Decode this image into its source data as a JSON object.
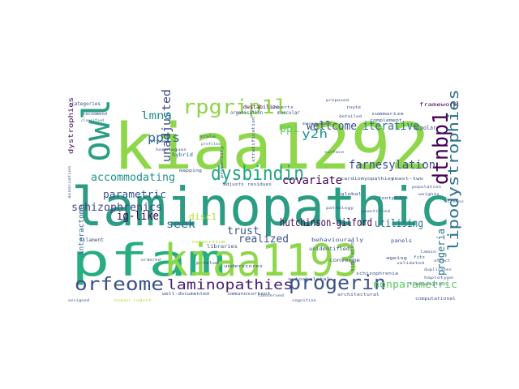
{
  "cloud": {
    "words": [
      {
        "text": "kiaa1292",
        "color": "#8ed64a"
      },
      {
        "text": "laminopathic",
        "color": "#2a9d84"
      },
      {
        "text": "pfam",
        "color": "#27ad81"
      },
      {
        "text": "kiaa1193",
        "color": "#8ed64a"
      },
      {
        "text": "owl",
        "color": "#2a9d84"
      },
      {
        "text": "dysbindin",
        "color": "#21a685"
      },
      {
        "text": "rpgrip1l",
        "color": "#8ed64a"
      },
      {
        "text": "dtnbp1",
        "color": "#440154"
      },
      {
        "text": "lipodystrophies",
        "color": "#2c728e"
      },
      {
        "text": "orfeome",
        "color": "#3b528b"
      },
      {
        "text": "laminopathies",
        "color": "#482173"
      },
      {
        "text": "progerin",
        "color": "#3b528b"
      },
      {
        "text": "ppis",
        "color": "#31688e"
      },
      {
        "text": "unadjusted",
        "color": "#3e4a89"
      },
      {
        "text": "ppi",
        "color": "#5ec962"
      },
      {
        "text": "y2h",
        "color": "#21918c"
      },
      {
        "text": "wellcome",
        "color": "#3b528b"
      },
      {
        "text": "iterative",
        "color": "#2c728e"
      },
      {
        "text": "lmna",
        "color": "#21918c"
      },
      {
        "text": "farnesylation",
        "color": "#3b528b"
      },
      {
        "text": "covariate",
        "color": "#440154"
      },
      {
        "text": "accommodating",
        "color": "#21918c"
      },
      {
        "text": "parametric",
        "color": "#3b528b"
      },
      {
        "text": "ig-like",
        "color": "#440154"
      },
      {
        "text": "schizophrenics",
        "color": "#414487"
      },
      {
        "text": "seek",
        "color": "#31688e"
      },
      {
        "text": "trust",
        "color": "#3b528b"
      },
      {
        "text": "hutchinson-gilford",
        "color": "#440154"
      },
      {
        "text": "utilising",
        "color": "#2c728e"
      },
      {
        "text": "disc1",
        "color": "#b5de2b"
      },
      {
        "text": "realized",
        "color": "#3b528b"
      },
      {
        "text": "progeria",
        "color": "#2c728e"
      },
      {
        "text": "nonparametric",
        "color": "#5ec962"
      },
      {
        "text": "interactome",
        "color": "#31688e"
      },
      {
        "text": "dystrophies",
        "color": "#440154"
      },
      {
        "text": "framework",
        "color": "#440154"
      },
      {
        "text": "categories",
        "color": "#3b528b"
      },
      {
        "text": "bipolar",
        "color": "#3b528b"
      },
      {
        "text": "organisation",
        "color": "#3b528b"
      },
      {
        "text": "destabilize",
        "color": "#440154"
      },
      {
        "text": "muscular",
        "color": "#3b528b"
      },
      {
        "text": "frames",
        "color": "#31688e"
      },
      {
        "text": "hybrid",
        "color": "#31688e"
      },
      {
        "text": "mapping",
        "color": "#3b528b"
      },
      {
        "text": "recommend",
        "color": "#3b528b"
      },
      {
        "text": "classified",
        "color": "#31688e"
      },
      {
        "text": "scale",
        "color": "#31688e"
      },
      {
        "text": "profiles",
        "color": "#31688e"
      },
      {
        "text": "cardiomyopathies",
        "color": "#3b528b"
      },
      {
        "text": "yeast-two",
        "color": "#3b528b"
      },
      {
        "text": "adjusts",
        "color": "#3b528b"
      },
      {
        "text": "residues",
        "color": "#3b528b"
      },
      {
        "text": "filament",
        "color": "#3b528b"
      },
      {
        "text": "libraries",
        "color": "#3b528b"
      },
      {
        "text": "behaviourally",
        "color": "#3b528b"
      },
      {
        "text": "unidentified",
        "color": "#3b528b"
      },
      {
        "text": "panels",
        "color": "#3b528b"
      },
      {
        "text": "converge",
        "color": "#3b528b"
      },
      {
        "text": "underscores",
        "color": "#3b528b"
      },
      {
        "text": "consortium",
        "color": "#b5de2b"
      },
      {
        "text": "inserts",
        "color": "#3b528b"
      },
      {
        "text": "route",
        "color": "#3b528b"
      },
      {
        "text": "summarize",
        "color": "#3b528b"
      },
      {
        "text": "complement",
        "color": "#3b528b"
      },
      {
        "text": "stratification",
        "color": "#3b528b"
      },
      {
        "text": "simulation",
        "color": "#3b528b"
      },
      {
        "text": "ageing",
        "color": "#3b528b"
      },
      {
        "text": "fits",
        "color": "#3b528b"
      },
      {
        "text": "well-documented",
        "color": "#3b528b"
      },
      {
        "text": "immunosorbent",
        "color": "#3b528b"
      },
      {
        "text": "architectural",
        "color": "#3b528b"
      },
      {
        "text": "computational",
        "color": "#3b528b"
      },
      {
        "text": "assigned",
        "color": "#3b528b"
      },
      {
        "text": "cytoskeletal",
        "color": "#3b528b"
      },
      {
        "text": "schizophrenia",
        "color": "#3b528b"
      },
      {
        "text": "footprint",
        "color": "#3b528b"
      },
      {
        "text": "global",
        "color": "#3b528b"
      },
      {
        "text": "p-value",
        "color": "#3b528b"
      },
      {
        "text": "homologues",
        "color": "#3b528b"
      },
      {
        "text": "human-rodent",
        "color": "#b5de2b"
      },
      {
        "text": "haplotype",
        "color": "#3b528b"
      },
      {
        "text": "validated",
        "color": "#3b528b"
      },
      {
        "text": "ordered",
        "color": "#3b528b"
      },
      {
        "text": "propensity",
        "color": "#3b528b"
      },
      {
        "text": "surface",
        "color": "#3b528b"
      },
      {
        "text": "affect",
        "color": "#3b528b"
      },
      {
        "text": "lamin",
        "color": "#3b528b"
      },
      {
        "text": "transcription",
        "color": "#3b528b"
      },
      {
        "text": "weights",
        "color": "#3b528b"
      },
      {
        "text": "population",
        "color": "#3b528b"
      },
      {
        "text": "screens",
        "color": "#3b528b"
      },
      {
        "text": "duplicates",
        "color": "#3b528b"
      },
      {
        "text": "cognition",
        "color": "#3b528b"
      },
      {
        "text": "association",
        "color": "#3b528b"
      },
      {
        "text": "pathology",
        "color": "#3b528b"
      },
      {
        "text": "quantified",
        "color": "#3b528b"
      },
      {
        "text": "conserved",
        "color": "#3b528b"
      },
      {
        "text": "management",
        "color": "#3b528b"
      },
      {
        "text": "detailed",
        "color": "#3b528b"
      },
      {
        "text": "proposed",
        "color": "#3b528b"
      }
    ]
  }
}
